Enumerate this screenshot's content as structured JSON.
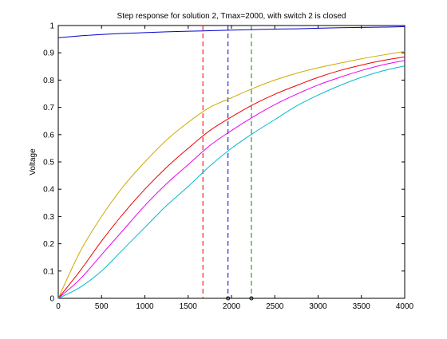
{
  "chart_data": {
    "type": "line",
    "title": "Step response for solution 2, Tmax=2000, with switch 2 is closed",
    "xlabel": "",
    "ylabel": "Voltage",
    "xlim": [
      0,
      4000
    ],
    "ylim": [
      0,
      1
    ],
    "xticks": [
      0,
      500,
      1000,
      1500,
      2000,
      2500,
      3000,
      3500,
      4000
    ],
    "yticks": [
      0,
      0.1,
      0.2,
      0.3,
      0.4,
      0.5,
      0.6,
      0.7,
      0.8,
      0.9,
      1
    ],
    "grid": false,
    "legend": "none",
    "x": [
      0,
      250,
      500,
      750,
      1000,
      1250,
      1500,
      1750,
      2000,
      2250,
      2500,
      2750,
      3000,
      3250,
      3500,
      3750,
      4000
    ],
    "series": [
      {
        "color": "#0000cc",
        "values": [
          0.955,
          0.962,
          0.967,
          0.971,
          0.974,
          0.977,
          0.979,
          0.981,
          0.983,
          0.985,
          0.987,
          0.988,
          0.99,
          0.992,
          0.993,
          0.994,
          0.996
        ]
      },
      {
        "color": "#ccaa00",
        "values": [
          0,
          0.17,
          0.3,
          0.41,
          0.5,
          0.58,
          0.645,
          0.7,
          0.735,
          0.77,
          0.8,
          0.825,
          0.845,
          0.862,
          0.878,
          0.892,
          0.905
        ]
      },
      {
        "color": "#ee0000",
        "values": [
          0,
          0.1,
          0.21,
          0.31,
          0.4,
          0.48,
          0.55,
          0.615,
          0.665,
          0.71,
          0.748,
          0.78,
          0.81,
          0.835,
          0.855,
          0.872,
          0.885
        ]
      },
      {
        "color": "#ee00ee",
        "values": [
          0,
          0.07,
          0.16,
          0.25,
          0.34,
          0.42,
          0.49,
          0.56,
          0.615,
          0.665,
          0.71,
          0.748,
          0.782,
          0.81,
          0.835,
          0.856,
          0.872
        ]
      },
      {
        "color": "#00bbcc",
        "values": [
          0,
          0.04,
          0.1,
          0.18,
          0.26,
          0.34,
          0.41,
          0.485,
          0.55,
          0.605,
          0.655,
          0.705,
          0.745,
          0.78,
          0.81,
          0.834,
          0.852
        ]
      }
    ],
    "vlines": [
      {
        "x": 1670,
        "color": "#ee0000",
        "style": "dashed"
      },
      {
        "x": 1960,
        "color": "#0000cc",
        "style": "dashed"
      },
      {
        "x": 2230,
        "color": "#008800",
        "style": "dashed"
      }
    ],
    "markers": [
      {
        "x": 1960,
        "y": 0,
        "color": "#000000"
      },
      {
        "x": 2230,
        "y": 0,
        "color": "#000000"
      }
    ]
  }
}
